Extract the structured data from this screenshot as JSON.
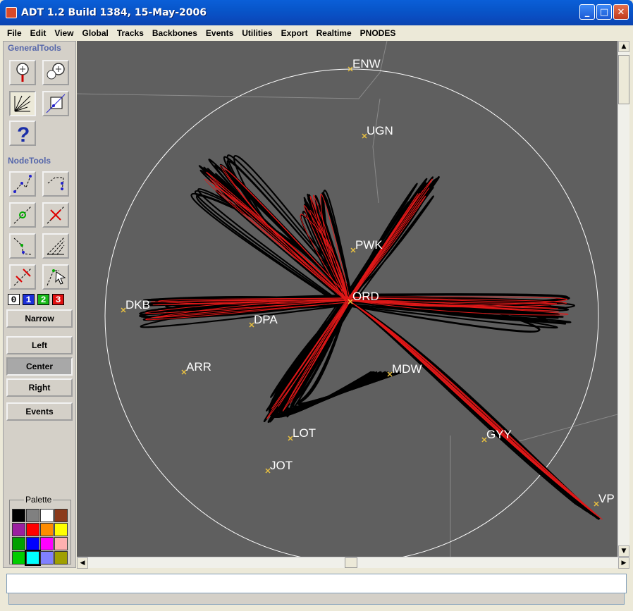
{
  "window": {
    "title": "ADT 1.2 Build 1384, 15-May-2006"
  },
  "menu": [
    "File",
    "Edit",
    "View",
    "Global",
    "Tracks",
    "Backbones",
    "Events",
    "Utilities",
    "Export",
    "Realtime",
    "PNODES"
  ],
  "tools": {
    "general_label": "GeneralTools",
    "node_label": "NodeTools",
    "levels": [
      "0",
      "1",
      "2",
      "3"
    ],
    "narrow": "Narrow",
    "left": "Left",
    "center": "Center",
    "right": "Right",
    "events": "Events",
    "palette_label": "Palette",
    "palette_colors": [
      "#000000",
      "#808080",
      "#ffffff",
      "#8b3a1a",
      "#9b1fa0",
      "#ff0000",
      "#ff8c00",
      "#ffff00",
      "#00a000",
      "#0000ff",
      "#ff00ff",
      "#ffb0b0",
      "#00cc00",
      "#00ffff",
      "#8080ff",
      "#a0a000"
    ]
  },
  "map": {
    "airports": [
      "ENW",
      "UGN",
      "PWK",
      "ORD",
      "DKB",
      "DPA",
      "ARR",
      "MDW",
      "LOT",
      "JOT",
      "GYY",
      "VP"
    ],
    "track_colors": {
      "background": "#5f5f5f",
      "tracks": "#000000",
      "backbone": "#ff0000",
      "ring": "#ffffff"
    }
  },
  "status": {
    "message": ""
  }
}
